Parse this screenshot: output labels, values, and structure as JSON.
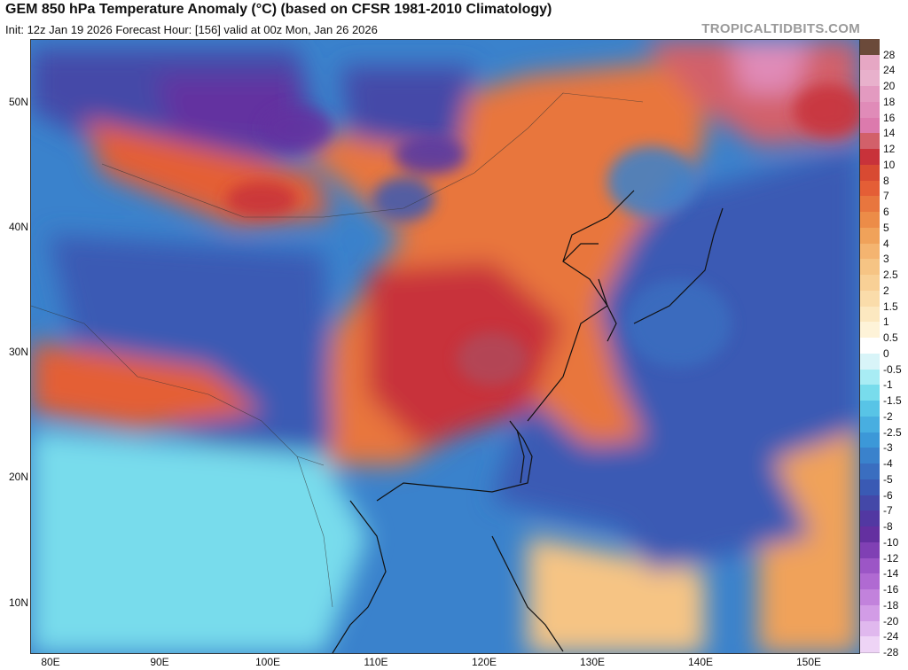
{
  "title": "GEM 850 hPa Temperature Anomaly (°C) (based on CFSR 1981-2010 Climatology)",
  "subtitle": "Init: 12z Jan 19 2026   Forecast Hour: [156]   valid at 00z Mon, Jan 26 2026",
  "watermark": "TROPICALTIDBITS.COM",
  "lat_labels": [
    "50N",
    "40N",
    "30N",
    "20N",
    "10N"
  ],
  "lon_labels": [
    "80E",
    "90E",
    "100E",
    "110E",
    "120E",
    "130E",
    "140E",
    "150E"
  ],
  "scale": {
    "labels": [
      "28",
      "24",
      "20",
      "18",
      "16",
      "14",
      "12",
      "10",
      "8",
      "7",
      "6",
      "5",
      "4",
      "3",
      "2.5",
      "2",
      "1.5",
      "1",
      "0.5",
      "0",
      "-0.5",
      "-1",
      "-1.5",
      "-2",
      "-2.5",
      "-3",
      "-4",
      "-5",
      "-6",
      "-7",
      "-8",
      "-10",
      "-12",
      "-14",
      "-16",
      "-18",
      "-20",
      "-24",
      "-28"
    ],
    "colors": [
      "#6b4a3a",
      "#e6a7c4",
      "#e8b1cc",
      "#e39ac0",
      "#e08bb8",
      "#dc7aad",
      "#d2606a",
      "#c8323a",
      "#d84a32",
      "#e45e36",
      "#e8763e",
      "#ec8c48",
      "#f0a25a",
      "#f4b470",
      "#f6c484",
      "#f8d096",
      "#fadcaa",
      "#fce8c0",
      "#fef3d8",
      "#ffffff",
      "#d8f4f8",
      "#a8ecf4",
      "#78dcec",
      "#58c4e6",
      "#48aee0",
      "#3c98d8",
      "#3a82cc",
      "#3a6ec0",
      "#3a5ab4",
      "#4448a8",
      "#5238a2",
      "#6430a0",
      "#8040b4",
      "#9c56c6",
      "#b06ad2",
      "#c282dc",
      "#d29ce6",
      "#e0b8ee",
      "#eed4f6"
    ],
    "title_color": "#111111"
  },
  "colors": {
    "ocean_cold": "#3a6ec0",
    "land_warm": "#e45e36"
  }
}
